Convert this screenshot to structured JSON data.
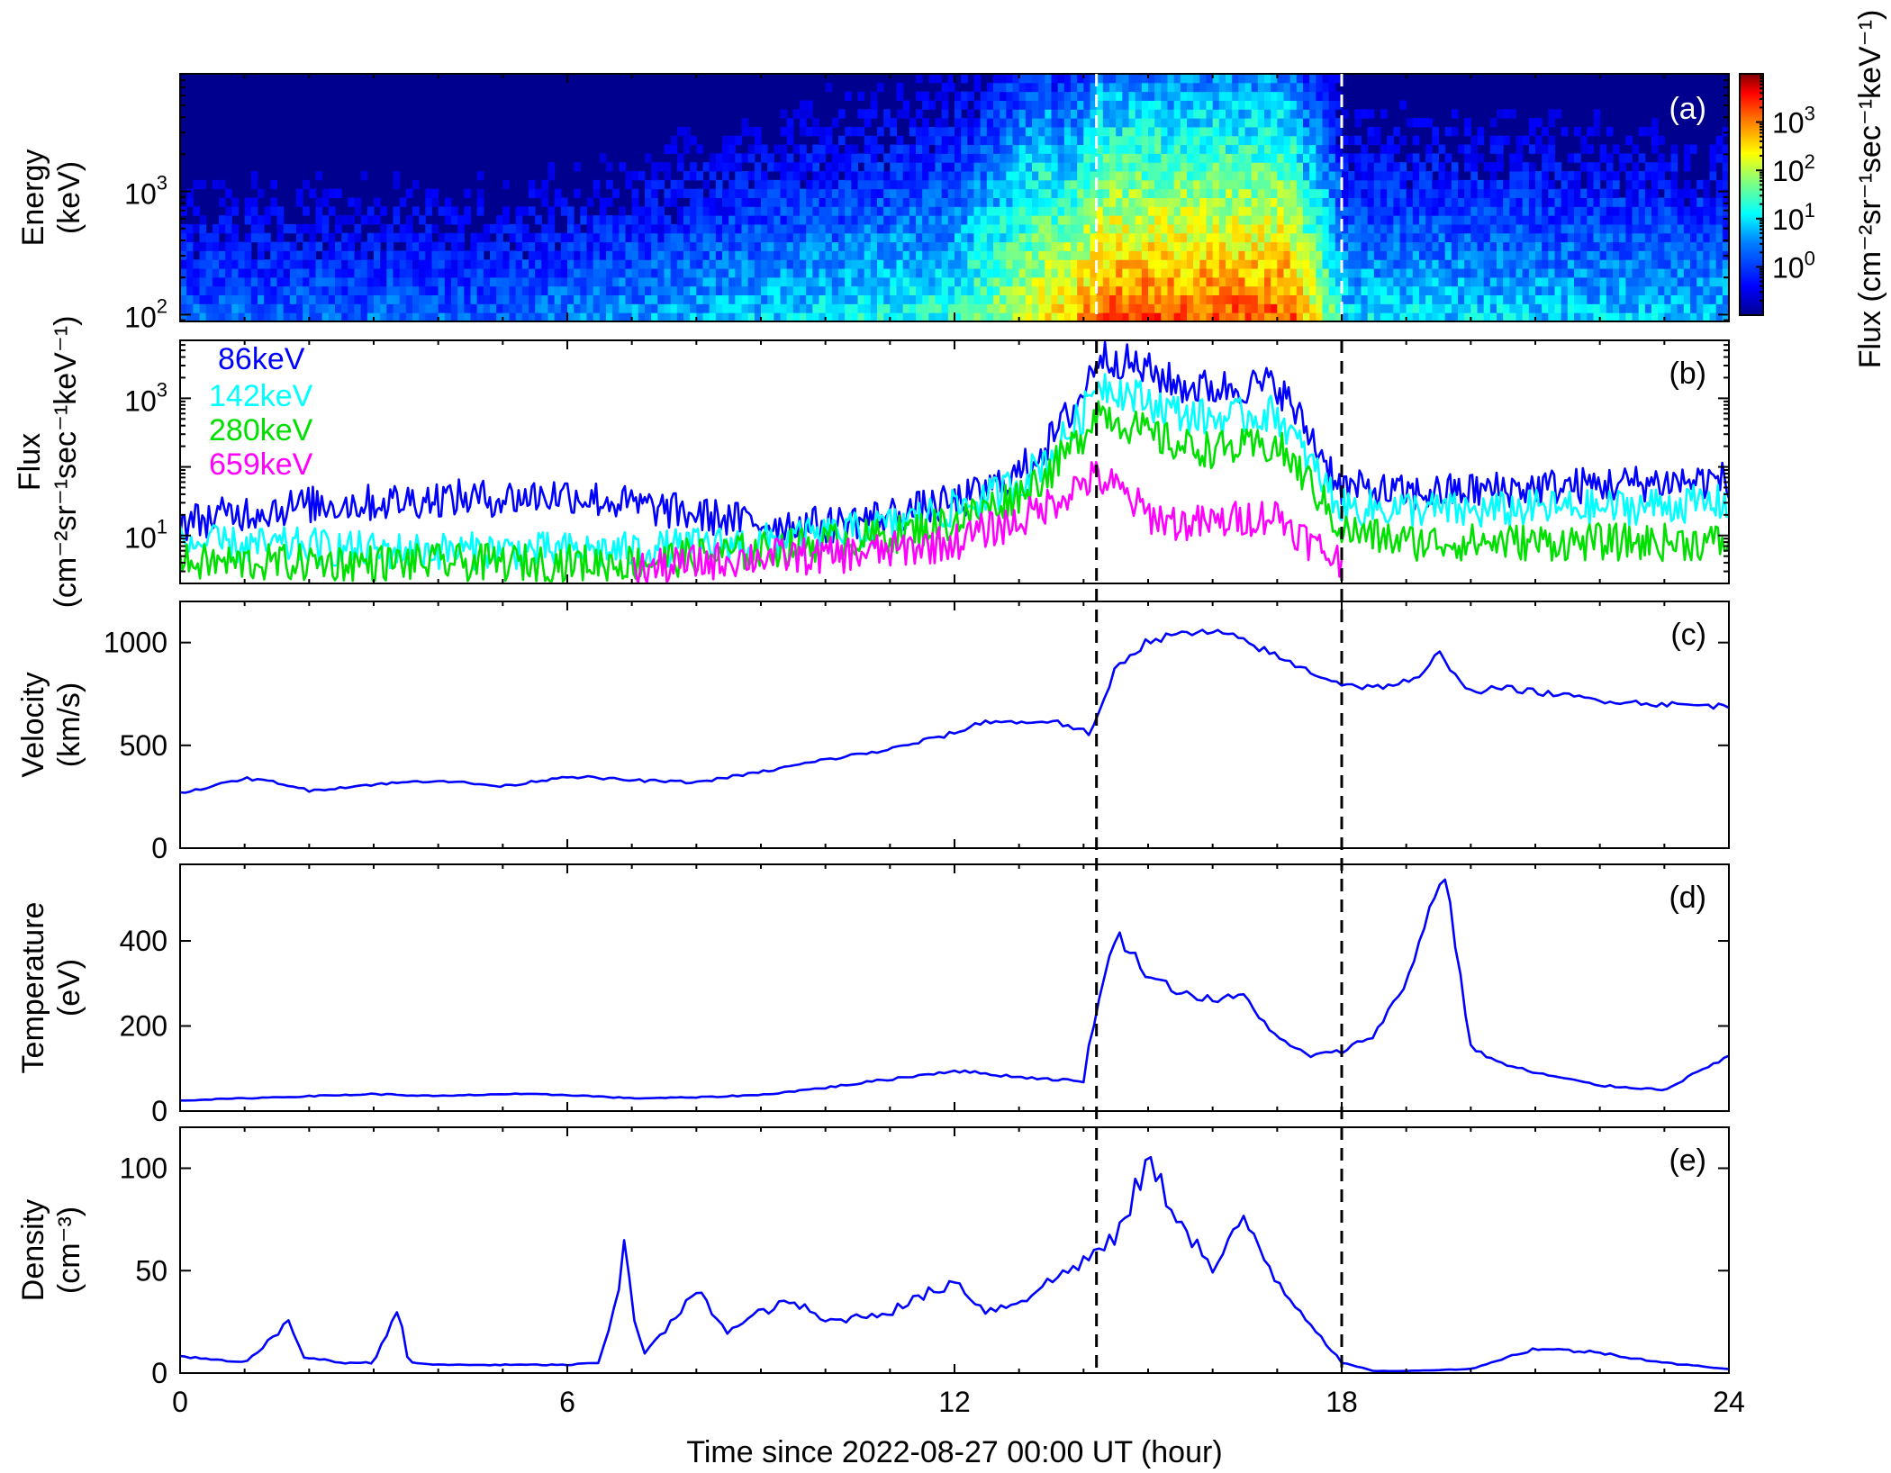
{
  "chart_data": [
    {
      "panel": "(a)",
      "type": "heatmap",
      "ylabel": [
        "Energy",
        "(keV)"
      ],
      "yscale": "log",
      "ylim": [
        88,
        9000
      ],
      "y_ticks": [
        {
          "base": "10",
          "exp": "2"
        },
        {
          "base": "10",
          "exp": "3"
        }
      ],
      "xlim": [
        0,
        24
      ],
      "colorbar": {
        "label": "Flux (cm⁻²sr⁻¹sec⁻¹keV⁻¹)",
        "scale": "log",
        "range": [
          0.1,
          10000
        ],
        "ticks": [
          {
            "base": "10",
            "exp": "0"
          },
          {
            "base": "10",
            "exp": "1"
          },
          {
            "base": "10",
            "exp": "2"
          },
          {
            "base": "10",
            "exp": "3"
          }
        ],
        "colormap": [
          "#00008f",
          "#0000ff",
          "#0080ff",
          "#00ffff",
          "#80ff80",
          "#ffff00",
          "#ff8000",
          "#ff0000",
          "#800000"
        ]
      },
      "description_of_values": "log10 flux peaks (~10^3-10^4) between 14 h and 17 h at lowest energies; background ~10^-1 to 10^0"
    },
    {
      "panel": "(b)",
      "type": "line",
      "ylabel": [
        "Flux",
        "(cm⁻²sr⁻¹sec⁻¹keV⁻¹)"
      ],
      "yscale": "log",
      "ylim": [
        2,
        7000
      ],
      "y_ticks": [
        {
          "base": "10",
          "exp": "1"
        },
        {
          "base": "10",
          "exp": "3"
        }
      ],
      "xlim": [
        0,
        24
      ],
      "x": [
        0,
        1,
        2,
        3,
        4,
        5,
        6,
        7,
        8,
        9,
        10,
        11,
        12,
        12.5,
        13,
        13.5,
        14,
        14.2,
        14.5,
        15,
        15.5,
        16,
        16.5,
        17,
        17.5,
        18,
        19,
        20,
        21,
        22,
        23,
        24
      ],
      "series": [
        {
          "name": "86keV",
          "color": "#0000ff",
          "values": [
            15,
            22,
            28,
            30,
            35,
            35,
            40,
            28,
            20,
            15,
            14,
            20,
            30,
            45,
            80,
            250,
            1200,
            4000,
            3800,
            2500,
            1500,
            1400,
            1500,
            1600,
            300,
            50,
            40,
            45,
            50,
            55,
            60,
            65
          ]
        },
        {
          "name": "142keV",
          "color": "#00ffff",
          "values": [
            8,
            7,
            7,
            6,
            6,
            6,
            6,
            6,
            7,
            8,
            10,
            14,
            25,
            35,
            60,
            150,
            600,
            1800,
            1400,
            900,
            600,
            500,
            550,
            600,
            120,
            25,
            25,
            22,
            25,
            25,
            28,
            30
          ]
        },
        {
          "name": "280keV",
          "color": "#00e000",
          "values": [
            4,
            4,
            4,
            4,
            4,
            4,
            4,
            4,
            5,
            6,
            8,
            10,
            16,
            25,
            40,
            90,
            300,
            700,
            500,
            300,
            200,
            180,
            190,
            200,
            60,
            12,
            8,
            8,
            8,
            8,
            8,
            8
          ]
        },
        {
          "name": "659keV",
          "color": "#ff00ff",
          "values": [
            null,
            null,
            null,
            null,
            null,
            null,
            null,
            3,
            4,
            5,
            5,
            6,
            8,
            12,
            16,
            30,
            60,
            70,
            50,
            20,
            15,
            15,
            18,
            20,
            8,
            4,
            null,
            null,
            null,
            null,
            null,
            null
          ]
        }
      ]
    },
    {
      "panel": "(c)",
      "type": "line",
      "ylabel": [
        "Velocity",
        "(km/s)"
      ],
      "ylim": [
        0,
        1200
      ],
      "y_ticks": [
        0,
        500,
        1000
      ],
      "xlim": [
        0,
        24
      ],
      "x": [
        0,
        0.5,
        1,
        1.5,
        2,
        3,
        4,
        5,
        6,
        7,
        8,
        9,
        10,
        11,
        12,
        12.5,
        13,
        13.5,
        14.0,
        14.1,
        14.5,
        15,
        15.5,
        16,
        16.5,
        17,
        17.5,
        18,
        18.5,
        19,
        19.2,
        19.5,
        20,
        20.5,
        21,
        22,
        23,
        24
      ],
      "series": [
        {
          "name": "",
          "color": "#0000ff",
          "values": [
            270,
            300,
            340,
            320,
            280,
            310,
            330,
            300,
            350,
            330,
            320,
            370,
            430,
            480,
            560,
            620,
            610,
            620,
            570,
            540,
            880,
            1010,
            1040,
            1050,
            1010,
            930,
            860,
            800,
            780,
            810,
            820,
            950,
            760,
            780,
            760,
            720,
            700,
            690
          ]
        }
      ]
    },
    {
      "panel": "(d)",
      "type": "line",
      "ylabel": [
        "Temperature",
        "(eV)"
      ],
      "ylim": [
        0,
        580
      ],
      "y_ticks": [
        0,
        200,
        400
      ],
      "xlim": [
        0,
        24
      ],
      "x": [
        0,
        1,
        2,
        3,
        4,
        5,
        6,
        7,
        8,
        9,
        10,
        11,
        12,
        13,
        14.0,
        14.1,
        14.5,
        15,
        15.5,
        16,
        16.5,
        17,
        17.5,
        18,
        18.5,
        19,
        19.3,
        19.6,
        20,
        20.5,
        21,
        22,
        23,
        24
      ],
      "series": [
        {
          "name": "",
          "color": "#0000ff",
          "values": [
            25,
            30,
            35,
            40,
            35,
            40,
            38,
            30,
            32,
            38,
            55,
            75,
            95,
            80,
            70,
            170,
            420,
            320,
            280,
            260,
            270,
            170,
            130,
            140,
            180,
            300,
            450,
            560,
            150,
            110,
            90,
            60,
            50,
            130
          ]
        }
      ]
    },
    {
      "panel": "(e)",
      "type": "line",
      "ylabel": [
        "Density",
        "(cm⁻³)"
      ],
      "ylim": [
        0,
        120
      ],
      "y_ticks": [
        0,
        50,
        100
      ],
      "xlim": [
        0,
        24
      ],
      "x": [
        0,
        1,
        1.7,
        1.9,
        2.5,
        3,
        3.4,
        3.5,
        3.6,
        4,
        5,
        6,
        6.5,
        6.8,
        6.9,
        7.0,
        7.2,
        7.5,
        8,
        8.5,
        9,
        9.5,
        10,
        11,
        12,
        12.5,
        13,
        13.5,
        14,
        14.5,
        15,
        15.3,
        15.6,
        16,
        16.5,
        17,
        17.5,
        18,
        18.5,
        19,
        20,
        21,
        22,
        23,
        24
      ],
      "series": [
        {
          "name": "",
          "color": "#0000ff",
          "values": [
            8,
            5,
            25,
            8,
            5,
            5,
            34,
            8,
            5,
            4,
            4,
            4,
            5,
            40,
            75,
            30,
            10,
            20,
            40,
            20,
            30,
            35,
            25,
            30,
            45,
            30,
            35,
            45,
            55,
            65,
            104,
            85,
            70,
            50,
            75,
            45,
            25,
            5,
            1,
            1,
            2,
            12,
            10,
            5,
            2
          ]
        }
      ]
    }
  ],
  "x_axis": {
    "label": "Time since 2022-08-27 00:00 UT (hour)",
    "ticks": [
      0,
      6,
      12,
      18,
      24
    ],
    "range": [
      0,
      24
    ]
  },
  "event_lines_x": [
    14.2,
    18.0
  ],
  "legend_b": [
    "86keV",
    "142keV",
    "280keV",
    "659keV"
  ]
}
